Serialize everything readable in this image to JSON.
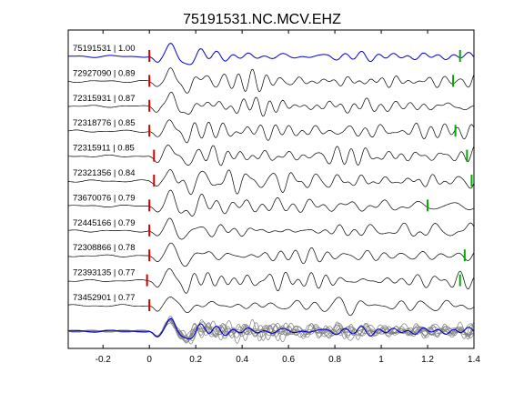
{
  "chart_data": {
    "type": "line",
    "title": "75191531.NC.MCV.EHZ",
    "xlabel": "",
    "ylabel": "",
    "xlim": [
      -0.35,
      1.4
    ],
    "xticks": [
      -0.2,
      0,
      0.2,
      0.4,
      0.6,
      0.8,
      1,
      1.2,
      1.4
    ],
    "xtick_labels": [
      "-0.2",
      "0",
      "0.2",
      "0.4",
      "0.6",
      "0.8",
      "1",
      "1.2",
      "1.4"
    ],
    "grid": false,
    "colors": {
      "reference": "#0000cc",
      "trace": "#000000",
      "stack": "#808080",
      "p_pick": "#cc0000",
      "s_pick": "#00aa00"
    },
    "series": [
      {
        "name": "75191531 | 1.00",
        "p_pick": 0.0,
        "s_pick": 1.34
      },
      {
        "name": "72927090 | 0.89",
        "p_pick": 0.0,
        "s_pick": 1.31
      },
      {
        "name": "72315931 | 0.87",
        "p_pick": 0.0,
        "s_pick": null
      },
      {
        "name": "72318776 | 0.85",
        "p_pick": 0.0,
        "s_pick": 1.32
      },
      {
        "name": "72315911 | 0.85",
        "p_pick": 0.02,
        "s_pick": 1.37
      },
      {
        "name": "72321356 | 0.84",
        "p_pick": 0.02,
        "s_pick": 1.39
      },
      {
        "name": "73670076 | 0.79",
        "p_pick": 0.0,
        "s_pick": 1.2
      },
      {
        "name": "72445166 | 0.79",
        "p_pick": 0.0,
        "s_pick": null
      },
      {
        "name": "72308866 | 0.78",
        "p_pick": 0.0,
        "s_pick": 1.36
      },
      {
        "name": "72393135 | 0.77",
        "p_pick": -0.01,
        "s_pick": 1.34
      },
      {
        "name": "73452901 | 0.77",
        "p_pick": 0.0,
        "s_pick": null
      }
    ]
  }
}
